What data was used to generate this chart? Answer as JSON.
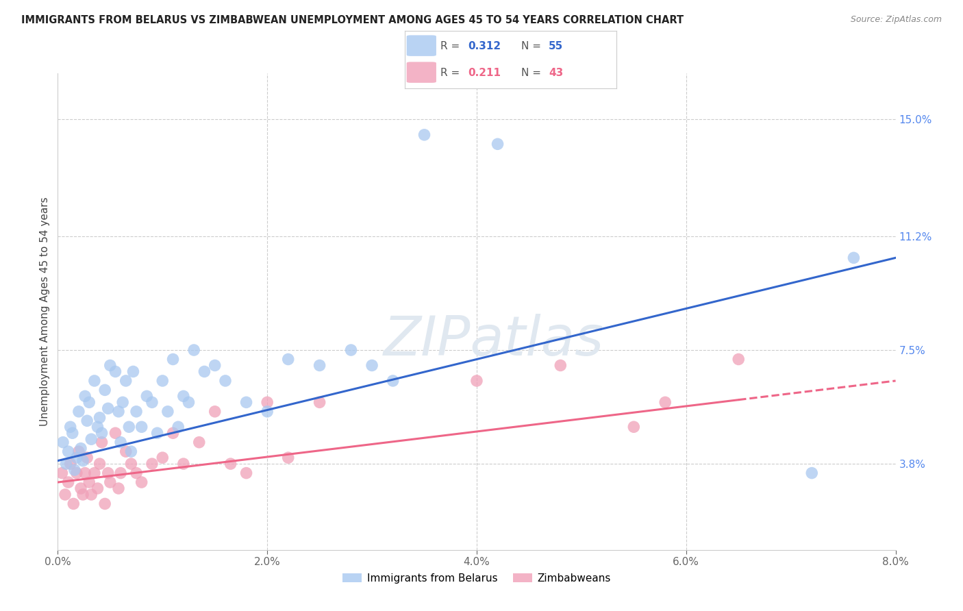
{
  "title": "IMMIGRANTS FROM BELARUS VS ZIMBABWEAN UNEMPLOYMENT AMONG AGES 45 TO 54 YEARS CORRELATION CHART",
  "source": "Source: ZipAtlas.com",
  "ylabel": "Unemployment Among Ages 45 to 54 years",
  "xlabel_ticks": [
    "0.0%",
    "2.0%",
    "4.0%",
    "6.0%",
    "8.0%"
  ],
  "xlabel_vals": [
    0.0,
    2.0,
    4.0,
    6.0,
    8.0
  ],
  "ylabel_ticks_right": [
    "3.8%",
    "7.5%",
    "11.2%",
    "15.0%"
  ],
  "ylabel_vals_right": [
    3.8,
    7.5,
    11.2,
    15.0
  ],
  "xmin": 0.0,
  "xmax": 8.0,
  "ymin": 1.0,
  "ymax": 16.5,
  "blue_R": "0.312",
  "blue_N": "55",
  "pink_R": "0.211",
  "pink_N": "43",
  "blue_color": "#a8c8f0",
  "pink_color": "#f0a0b8",
  "blue_line_color": "#3366cc",
  "pink_line_color": "#ee6688",
  "watermark": "ZIPatlas",
  "legend_label_blue": "Immigrants from Belarus",
  "legend_label_pink": "Zimbabweans",
  "blue_x": [
    0.05,
    0.08,
    0.1,
    0.12,
    0.14,
    0.16,
    0.18,
    0.2,
    0.22,
    0.24,
    0.26,
    0.28,
    0.3,
    0.32,
    0.35,
    0.38,
    0.4,
    0.42,
    0.45,
    0.48,
    0.5,
    0.55,
    0.58,
    0.6,
    0.62,
    0.65,
    0.68,
    0.7,
    0.72,
    0.75,
    0.8,
    0.85,
    0.9,
    0.95,
    1.0,
    1.05,
    1.1,
    1.15,
    1.2,
    1.25,
    1.3,
    1.4,
    1.5,
    1.6,
    1.8,
    2.0,
    2.2,
    2.5,
    2.8,
    3.0,
    3.2,
    3.5,
    4.2,
    7.2,
    7.6
  ],
  "blue_y": [
    4.5,
    3.8,
    4.2,
    5.0,
    4.8,
    3.6,
    4.0,
    5.5,
    4.3,
    3.9,
    6.0,
    5.2,
    5.8,
    4.6,
    6.5,
    5.0,
    5.3,
    4.8,
    6.2,
    5.6,
    7.0,
    6.8,
    5.5,
    4.5,
    5.8,
    6.5,
    5.0,
    4.2,
    6.8,
    5.5,
    5.0,
    6.0,
    5.8,
    4.8,
    6.5,
    5.5,
    7.2,
    5.0,
    6.0,
    5.8,
    7.5,
    6.8,
    7.0,
    6.5,
    5.8,
    5.5,
    7.2,
    7.0,
    7.5,
    7.0,
    6.5,
    14.5,
    14.2,
    3.5,
    10.5
  ],
  "pink_x": [
    0.04,
    0.07,
    0.1,
    0.12,
    0.15,
    0.18,
    0.2,
    0.22,
    0.24,
    0.26,
    0.28,
    0.3,
    0.32,
    0.35,
    0.38,
    0.4,
    0.42,
    0.45,
    0.48,
    0.5,
    0.55,
    0.58,
    0.6,
    0.65,
    0.7,
    0.75,
    0.8,
    0.9,
    1.0,
    1.1,
    1.2,
    1.35,
    1.5,
    1.65,
    1.8,
    2.0,
    2.2,
    2.5,
    4.0,
    4.8,
    5.5,
    5.8,
    6.5
  ],
  "pink_y": [
    3.5,
    2.8,
    3.2,
    3.8,
    2.5,
    3.5,
    4.2,
    3.0,
    2.8,
    3.5,
    4.0,
    3.2,
    2.8,
    3.5,
    3.0,
    3.8,
    4.5,
    2.5,
    3.5,
    3.2,
    4.8,
    3.0,
    3.5,
    4.2,
    3.8,
    3.5,
    3.2,
    3.8,
    4.0,
    4.8,
    3.8,
    4.5,
    5.5,
    3.8,
    3.5,
    5.8,
    4.0,
    5.8,
    6.5,
    7.0,
    5.0,
    5.8,
    7.2
  ],
  "blue_line_x0": 0.0,
  "blue_line_y0": 3.9,
  "blue_line_x1": 8.0,
  "blue_line_y1": 10.5,
  "pink_line_x0": 0.0,
  "pink_line_y0": 3.2,
  "pink_line_x1": 8.0,
  "pink_line_y1": 6.5,
  "pink_solid_xmax": 6.5,
  "grid_color": "#cccccc",
  "spine_color": "#cccccc"
}
